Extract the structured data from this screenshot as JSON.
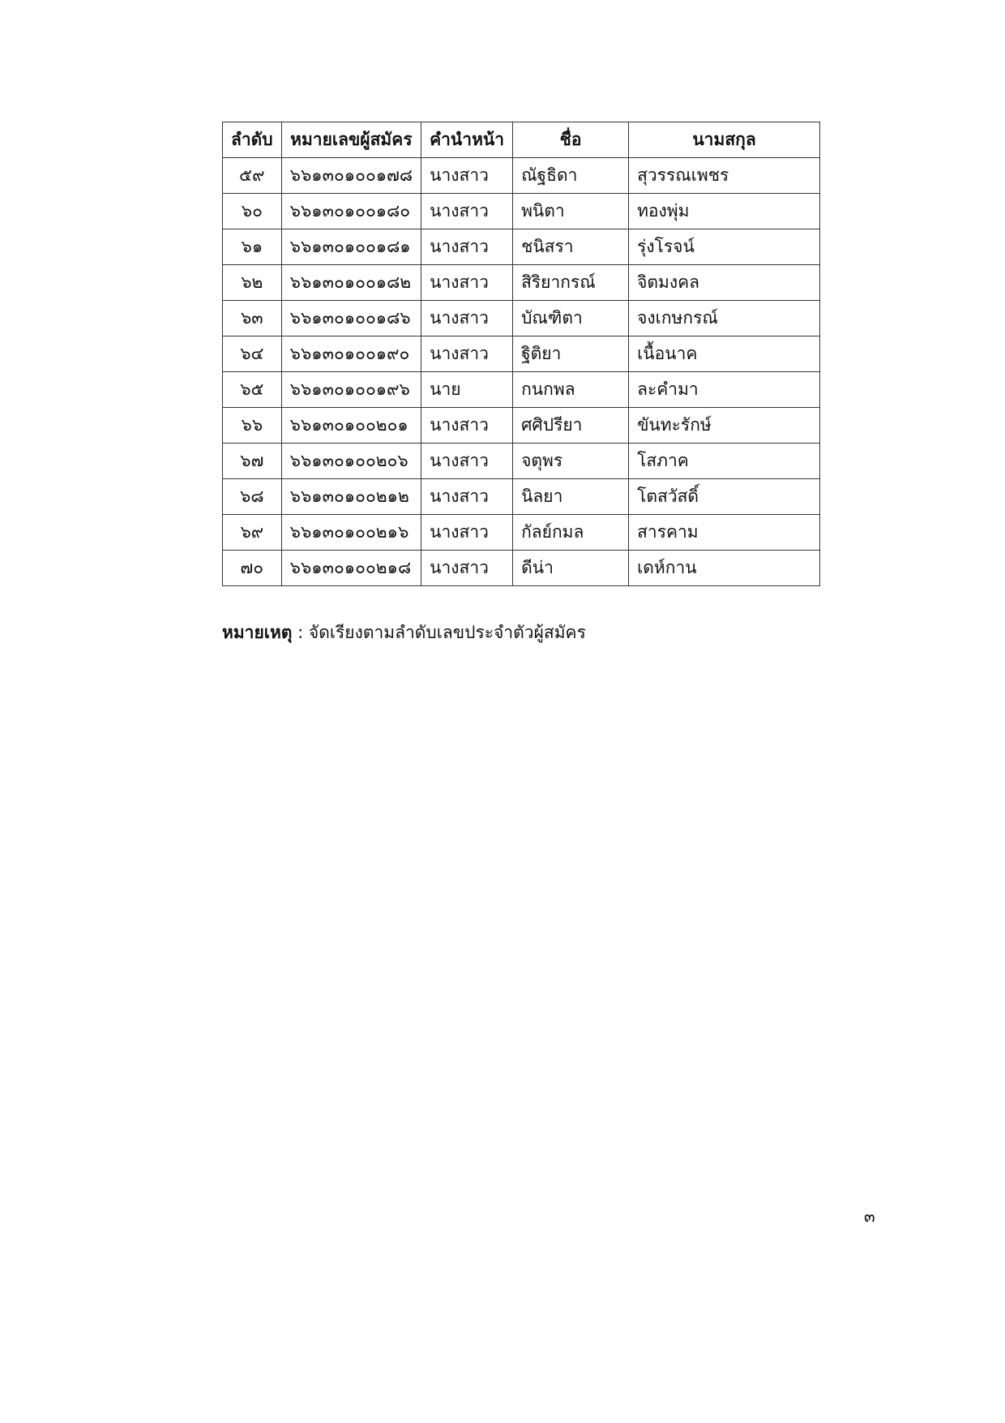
{
  "table": {
    "headers": [
      "ลำดับ",
      "หมายเลขผู้สมัคร",
      "คำนำหน้า",
      "ชื่อ",
      "นามสกุล"
    ],
    "rows": [
      [
        "๕๙",
        "๖๖๑๓๐๑๐๐๑๗๘",
        "นางสาว",
        "ณัฐธิดา",
        "สุวรรณเพชร"
      ],
      [
        "๖๐",
        "๖๖๑๓๐๑๐๐๑๘๐",
        "นางสาว",
        "พนิตา",
        "ทองพุ่ม"
      ],
      [
        "๖๑",
        "๖๖๑๓๐๑๐๐๑๘๑",
        "นางสาว",
        "ชนิสรา",
        "รุ่งโรจน์"
      ],
      [
        "๖๒",
        "๖๖๑๓๐๑๐๐๑๘๒",
        "นางสาว",
        "สิริยากรณ์",
        "จิตมงคล"
      ],
      [
        "๖๓",
        "๖๖๑๓๐๑๐๐๑๘๖",
        "นางสาว",
        "บัณฑิตา",
        "จงเกษกรณ์"
      ],
      [
        "๖๔",
        "๖๖๑๓๐๑๐๐๑๙๐",
        "นางสาว",
        "ฐิติยา",
        "เนื้อนาค"
      ],
      [
        "๖๕",
        "๖๖๑๓๐๑๐๐๑๙๖",
        "นาย",
        "กนกพล",
        "ละคำมา"
      ],
      [
        "๖๖",
        "๖๖๑๓๐๑๐๐๒๐๑",
        "นางสาว",
        "ศศิปรียา",
        "ขันทะรักษ์"
      ],
      [
        "๖๗",
        "๖๖๑๓๐๑๐๐๒๐๖",
        "นางสาว",
        "จตุพร",
        "โสภาค"
      ],
      [
        "๖๘",
        "๖๖๑๓๐๑๐๐๒๑๒",
        "นางสาว",
        "นิลยา",
        "โตสวัสดิ์"
      ],
      [
        "๖๙",
        "๖๖๑๓๐๑๐๐๒๑๖",
        "นางสาว",
        "กัลย์กมล",
        "สารคาม"
      ],
      [
        "๗๐",
        "๖๖๑๓๐๑๐๐๒๑๘",
        "นางสาว",
        "ดีน่า",
        "เดห์กาน"
      ]
    ]
  },
  "note": {
    "label": "หมายเหตุ",
    "separator": " : ",
    "text": "จัดเรียงตามลำดับเลขประจำตัวผู้สมัคร"
  },
  "page_number": "๓"
}
